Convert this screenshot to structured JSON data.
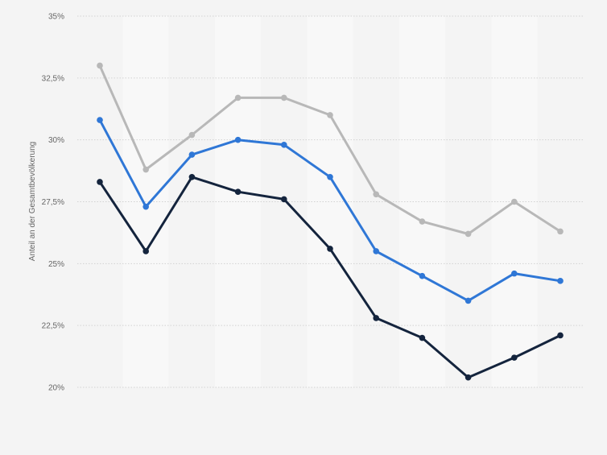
{
  "chart_data": {
    "type": "line",
    "ylabel": "Anteil an der Gesamtbevölkerung",
    "ylim": [
      20,
      35
    ],
    "yticks": [
      20,
      22.5,
      25,
      27.5,
      30,
      32.5,
      35
    ],
    "ytick_labels": [
      "20%",
      "22,5%",
      "25%",
      "27,5%",
      "30%",
      "32,5%",
      "35%"
    ],
    "grid": true,
    "x": [
      1,
      2,
      3,
      4,
      5,
      6,
      7,
      8,
      9,
      10,
      11
    ],
    "series": [
      {
        "color": "#b8b8b8",
        "values": [
          33.0,
          28.8,
          30.2,
          31.7,
          31.7,
          31.0,
          27.8,
          26.7,
          26.2,
          27.5,
          26.3
        ]
      },
      {
        "color": "#2f77d6",
        "values": [
          30.8,
          27.3,
          29.4,
          30.0,
          29.8,
          28.5,
          25.5,
          24.5,
          23.5,
          24.6,
          24.3
        ]
      },
      {
        "color": "#14243d",
        "values": [
          28.3,
          25.5,
          28.5,
          27.9,
          27.6,
          25.6,
          22.8,
          22.0,
          20.4,
          21.2,
          22.1
        ]
      }
    ]
  }
}
